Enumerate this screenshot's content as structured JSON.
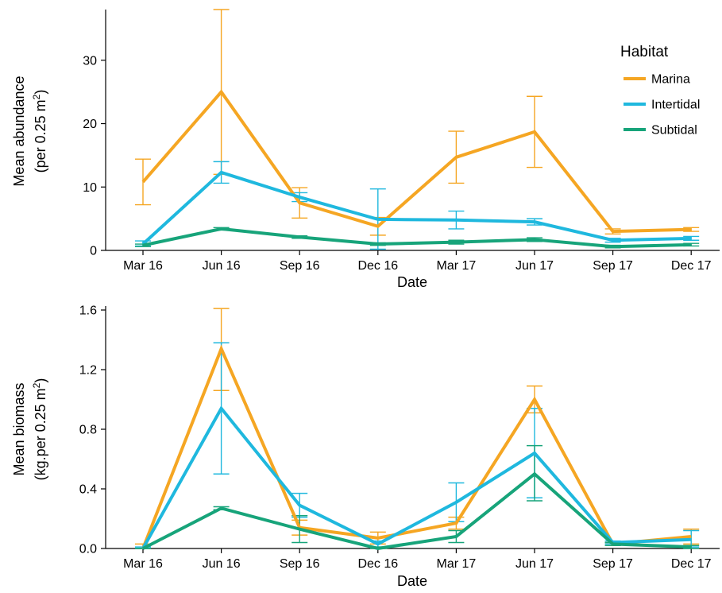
{
  "chart_data": [
    {
      "type": "line",
      "xlabel": "Date",
      "ylabel": "Mean abundance",
      "ylabel_line2": "(per 0.25 m",
      "ylabel_sup": "2",
      "ylabel_close": ")",
      "categories": [
        "Mar 16",
        "Jun 16",
        "Sep 16",
        "Dec 16",
        "Mar 17",
        "Jun 17",
        "Sep 17",
        "Dec 17"
      ],
      "ylim": [
        0,
        38
      ],
      "yticks": [
        0,
        10,
        20,
        30
      ],
      "ytick_labels": [
        "0",
        "10",
        "20",
        "30"
      ],
      "legend": {
        "title": "Habitat",
        "position": "top-right"
      },
      "series": [
        {
          "name": "Marina",
          "color": "#F5A623",
          "values": [
            10.8,
            25.0,
            7.5,
            3.8,
            14.7,
            18.7,
            3.0,
            3.3
          ],
          "err_low": [
            7.2,
            12.0,
            5.1,
            2.4,
            10.6,
            13.1,
            2.6,
            3.0
          ],
          "err_high": [
            14.4,
            38.0,
            9.9,
            5.2,
            18.8,
            24.3,
            3.4,
            3.6
          ]
        },
        {
          "name": "Intertidal",
          "color": "#1FB8DE",
          "values": [
            1.0,
            12.3,
            8.4,
            4.9,
            4.8,
            4.5,
            1.6,
            1.9
          ],
          "err_low": [
            0.7,
            10.6,
            7.7,
            0.2,
            3.4,
            4.0,
            1.3,
            1.6
          ],
          "err_high": [
            1.5,
            14.0,
            9.1,
            9.7,
            6.2,
            5.0,
            1.9,
            2.2
          ]
        },
        {
          "name": "Subtidal",
          "color": "#17A47A",
          "values": [
            0.8,
            3.4,
            2.1,
            1.0,
            1.3,
            1.7,
            0.6,
            0.9
          ],
          "err_low": [
            0.6,
            3.2,
            1.9,
            0.8,
            1.0,
            1.4,
            0.4,
            0.7
          ],
          "err_high": [
            1.0,
            3.6,
            2.3,
            1.2,
            1.6,
            2.0,
            0.8,
            1.1
          ]
        }
      ]
    },
    {
      "type": "line",
      "xlabel": "Date",
      "ylabel": "Mean biomass",
      "ylabel_line2": "(kg.per 0.25 m",
      "ylabel_sup": "2",
      "ylabel_close": ")",
      "categories": [
        "Mar 16",
        "Jun 16",
        "Sep 16",
        "Dec 16",
        "Mar 17",
        "Jun 17",
        "Sep 17",
        "Dec 17"
      ],
      "ylim": [
        0,
        1.6
      ],
      "yticks": [
        0,
        0.4,
        0.8,
        1.2,
        1.6
      ],
      "ytick_labels": [
        "0.0",
        "0.4",
        "0.8",
        "1.2",
        "1.6"
      ],
      "series": [
        {
          "name": "Marina",
          "color": "#F5A623",
          "values": [
            0.0,
            1.34,
            0.14,
            0.07,
            0.17,
            1.0,
            0.03,
            0.08
          ],
          "err_low": [
            0.0,
            1.06,
            0.09,
            0.03,
            0.13,
            0.91,
            0.02,
            0.03
          ],
          "err_high": [
            0.03,
            1.61,
            0.19,
            0.11,
            0.21,
            1.09,
            0.04,
            0.13
          ]
        },
        {
          "name": "Intertidal",
          "color": "#1FB8DE",
          "values": [
            0.0,
            0.94,
            0.29,
            0.03,
            0.31,
            0.64,
            0.04,
            0.06
          ],
          "err_low": [
            0.0,
            0.5,
            0.21,
            0.01,
            0.18,
            0.34,
            0.03,
            0.01
          ],
          "err_high": [
            0.01,
            1.38,
            0.37,
            0.05,
            0.44,
            0.94,
            0.05,
            0.12
          ]
        },
        {
          "name": "Subtidal",
          "color": "#17A47A",
          "values": [
            0.0,
            0.27,
            0.13,
            0.0,
            0.08,
            0.5,
            0.03,
            0.01
          ],
          "err_low": [
            0.0,
            0.26,
            0.04,
            0.0,
            0.04,
            0.32,
            0.02,
            0.0
          ],
          "err_high": [
            0.0,
            0.28,
            0.22,
            0.01,
            0.12,
            0.69,
            0.04,
            0.02
          ]
        }
      ]
    }
  ]
}
